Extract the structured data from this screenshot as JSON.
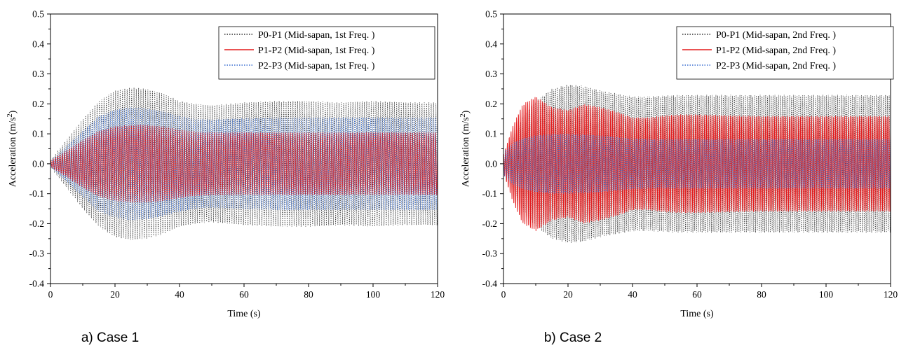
{
  "chart_data": [
    {
      "type": "line",
      "caption": "a) Case 1",
      "xlabel": "Time (s)",
      "ylabel_main": "Acceleration (m/s",
      "ylabel_sup": "2",
      "ylabel_close": ")",
      "xlim": [
        0,
        120
      ],
      "ylim": [
        -0.4,
        0.5
      ],
      "xticks": [
        0,
        20,
        40,
        60,
        80,
        100,
        120
      ],
      "xtick_labels": [
        "0",
        "20",
        "40",
        "60",
        "80",
        "100",
        "120"
      ],
      "yticks": [
        -0.4,
        -0.3,
        -0.2,
        -0.1,
        0.0,
        0.1,
        0.2,
        0.3,
        0.4,
        0.5
      ],
      "ytick_labels": [
        "-0.4",
        "-0.3",
        "-0.2",
        "-0.1",
        "0.0",
        "0.1",
        "0.2",
        "0.3",
        "0.4",
        "0.5"
      ],
      "grid": false,
      "legend_position": "top-right",
      "series": [
        {
          "name": "P0-P1 (Mid-sapan, 1st Freq. )",
          "color": "#333333",
          "style": "dotted",
          "envelope": {
            "x": [
              0,
              5,
              10,
              15,
              20,
              25,
              30,
              35,
              40,
              45,
              50,
              55,
              60,
              70,
              80,
              90,
              100,
              110,
              120
            ],
            "y": [
              0.01,
              0.08,
              0.15,
              0.21,
              0.245,
              0.255,
              0.25,
              0.235,
              0.21,
              0.2,
              0.195,
              0.2,
              0.205,
              0.21,
              0.21,
              0.205,
              0.21,
              0.205,
              0.205
            ]
          }
        },
        {
          "name": "P1-P2 (Mid-sapan, 1st Freq. )",
          "color": "#e31a1c",
          "style": "solid",
          "envelope": {
            "x": [
              0,
              5,
              10,
              15,
              20,
              25,
              30,
              35,
              40,
              45,
              50,
              55,
              60,
              70,
              80,
              90,
              100,
              110,
              120
            ],
            "y": [
              0.01,
              0.045,
              0.08,
              0.11,
              0.125,
              0.13,
              0.13,
              0.125,
              0.115,
              0.108,
              0.105,
              0.105,
              0.105,
              0.105,
              0.105,
              0.105,
              0.105,
              0.105,
              0.105
            ]
          }
        },
        {
          "name": "P2-P3 (Mid-sapan, 1st Freq. )",
          "color": "#3b6fd0",
          "style": "dotted",
          "envelope": {
            "x": [
              0,
              5,
              10,
              15,
              20,
              25,
              30,
              35,
              40,
              45,
              50,
              55,
              60,
              70,
              80,
              90,
              100,
              110,
              120
            ],
            "y": [
              0.01,
              0.06,
              0.11,
              0.16,
              0.18,
              0.19,
              0.185,
              0.175,
              0.16,
              0.15,
              0.148,
              0.15,
              0.152,
              0.155,
              0.155,
              0.155,
              0.155,
              0.155,
              0.155
            ]
          }
        }
      ]
    },
    {
      "type": "line",
      "caption": "b) Case 2",
      "xlabel": "Time (s)",
      "ylabel_main": "Acceleration (m/s",
      "ylabel_sup": "2",
      "ylabel_close": ")",
      "xlim": [
        0,
        120
      ],
      "ylim": [
        -0.4,
        0.5
      ],
      "xticks": [
        0,
        20,
        40,
        60,
        80,
        100,
        120
      ],
      "xtick_labels": [
        "0",
        "20",
        "40",
        "60",
        "80",
        "100",
        "120"
      ],
      "yticks": [
        -0.4,
        -0.3,
        -0.2,
        -0.1,
        0.0,
        0.1,
        0.2,
        0.3,
        0.4,
        0.5
      ],
      "ytick_labels": [
        "-0.4",
        "-0.3",
        "-0.2",
        "-0.1",
        "0.0",
        "0.1",
        "0.2",
        "0.3",
        "0.4",
        "0.5"
      ],
      "grid": false,
      "legend_position": "top-right",
      "series": [
        {
          "name": "P0-P1 (Mid-sapan, 2nd Freq. )",
          "color": "#333333",
          "style": "dotted",
          "envelope": {
            "x": [
              0,
              3,
              6,
              10,
              15,
              20,
              25,
              30,
              35,
              40,
              45,
              50,
              55,
              60,
              70,
              80,
              90,
              100,
              110,
              120
            ],
            "y": [
              0.01,
              0.09,
              0.16,
              0.21,
              0.25,
              0.265,
              0.26,
              0.245,
              0.235,
              0.225,
              0.225,
              0.228,
              0.23,
              0.23,
              0.23,
              0.23,
              0.23,
              0.23,
              0.23,
              0.23
            ]
          }
        },
        {
          "name": "P1-P2 (Mid-sapan, 2nd Freq. )",
          "color": "#e31a1c",
          "style": "solid",
          "envelope": {
            "x": [
              0,
              3,
              6,
              10,
              15,
              20,
              25,
              30,
              35,
              40,
              45,
              50,
              55,
              60,
              70,
              80,
              90,
              100,
              110,
              120
            ],
            "y": [
              0.03,
              0.13,
              0.2,
              0.225,
              0.19,
              0.18,
              0.2,
              0.19,
              0.175,
              0.155,
              0.155,
              0.162,
              0.165,
              0.165,
              0.162,
              0.16,
              0.16,
              0.16,
              0.16,
              0.16
            ]
          }
        },
        {
          "name": "P2-P3 (Mid-sapan, 2nd Freq. )",
          "color": "#3b6fd0",
          "style": "dotted",
          "envelope": {
            "x": [
              0,
              3,
              6,
              10,
              15,
              20,
              25,
              30,
              35,
              40,
              45,
              50,
              55,
              60,
              70,
              80,
              90,
              100,
              110,
              120
            ],
            "y": [
              0.04,
              0.07,
              0.085,
              0.095,
              0.1,
              0.1,
              0.098,
              0.095,
              0.09,
              0.085,
              0.083,
              0.083,
              0.083,
              0.083,
              0.083,
              0.083,
              0.083,
              0.083,
              0.083,
              0.083
            ]
          }
        }
      ]
    }
  ]
}
